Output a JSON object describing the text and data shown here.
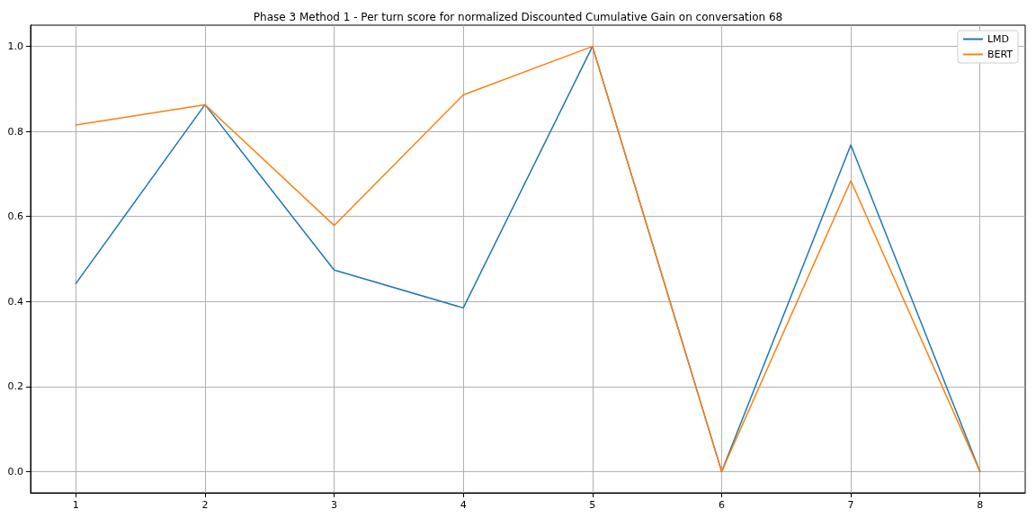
{
  "chart_data": {
    "type": "line",
    "title": "Phase 3 Method 1 - Per turn score for normalized Discounted Cumulative Gain on conversation 68",
    "x": [
      1,
      2,
      3,
      4,
      5,
      6,
      7,
      8
    ],
    "series": [
      {
        "name": "LMD",
        "color": "#1f77b4",
        "values": [
          0.442,
          0.863,
          0.474,
          0.385,
          1.0,
          0.0,
          0.768,
          0.0
        ]
      },
      {
        "name": "BERT",
        "color": "#ff7f0e",
        "values": [
          0.815,
          0.863,
          0.579,
          0.886,
          1.0,
          0.0,
          0.684,
          0.0
        ]
      }
    ],
    "xlim": [
      0.65,
      8.35
    ],
    "xticks": [
      1,
      2,
      3,
      4,
      5,
      6,
      7,
      8
    ],
    "ylim": [
      -0.05,
      1.05
    ],
    "yticks": [
      {
        "value": 0,
        "label": "0.0"
      },
      {
        "value": 0.2,
        "label": "0.2"
      },
      {
        "value": 0.4,
        "label": "0.4"
      },
      {
        "value": 0.6,
        "label": "0.6"
      },
      {
        "value": 0.8,
        "label": "0.8"
      },
      {
        "value": 1,
        "label": "1.0"
      }
    ],
    "grid": true,
    "legend": "top right",
    "marker": "none",
    "line_style": "solid"
  }
}
